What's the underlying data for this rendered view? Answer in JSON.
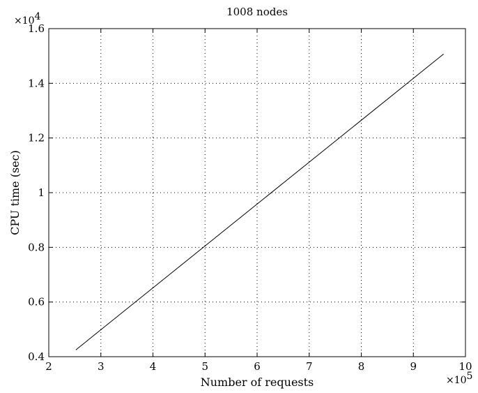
{
  "chart_data": {
    "type": "line",
    "title": "1008 nodes",
    "xlabel": "Number of requests",
    "ylabel": "CPU time (sec)",
    "x_multiplier": {
      "base": "×10",
      "exponent": "5"
    },
    "y_multiplier": {
      "base": "×10",
      "exponent": "4"
    },
    "xlim": [
      2,
      10
    ],
    "ylim": [
      0.4,
      1.6
    ],
    "x_ticks": [
      2,
      3,
      4,
      5,
      6,
      7,
      8,
      9,
      10
    ],
    "x_tick_labels": [
      "2",
      "3",
      "4",
      "5",
      "6",
      "7",
      "8",
      "9",
      "10"
    ],
    "y_ticks": [
      0.4,
      0.6,
      0.8,
      1.0,
      1.2,
      1.4,
      1.6
    ],
    "y_tick_labels": [
      "0.4",
      "0.6",
      "0.8",
      "1",
      "1.2",
      "1.4",
      "1.6"
    ],
    "grid": true,
    "series": [
      {
        "x": [
          2.52,
          9.58
        ],
        "y": [
          0.425,
          1.507
        ]
      }
    ]
  }
}
